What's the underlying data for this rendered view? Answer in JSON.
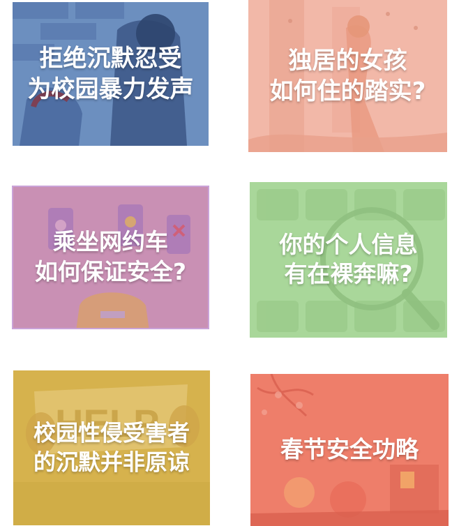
{
  "cards": [
    {
      "lines": [
        "拒绝沉默忍受",
        "为校园暴力发声"
      ],
      "color": "#6c8fbf"
    },
    {
      "lines": [
        "独居的女孩",
        "如何住的踏实?"
      ],
      "color": "#f2b8a8"
    },
    {
      "lines": [
        "乘坐网约车",
        "如何保证安全?"
      ],
      "color": "#c990b4"
    },
    {
      "lines": [
        "你的个人信息",
        "有在裸奔嘛?"
      ],
      "color": "#a9d79a"
    },
    {
      "lines": [
        "校园性侵受害者",
        "的沉默并非原谅"
      ],
      "color": "#d6b24d"
    },
    {
      "lines": [
        "春节安全功略"
      ],
      "color": "#ee7e6a"
    }
  ],
  "decorations": {
    "card5_sign_text": "HELP"
  }
}
